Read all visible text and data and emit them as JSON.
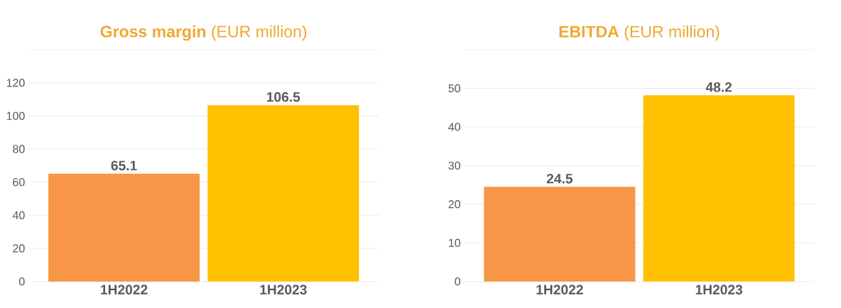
{
  "chart_data": [
    {
      "type": "bar",
      "title": "**Gross margin** (EUR million)",
      "categories": [
        "1H2022",
        "1H2023"
      ],
      "values": [
        65.1,
        106.5
      ],
      "colors": [
        "#f79646",
        "#ffc000"
      ],
      "ylim": [
        0,
        140
      ],
      "yticks": [
        0,
        20,
        40,
        60,
        80,
        100,
        120,
        {
          "value": 140,
          "label": null
        }
      ],
      "grid": "y",
      "data_labels": true
    },
    {
      "type": "bar",
      "title": "**EBITDA** (EUR million)",
      "categories": [
        "1H2022",
        "1H2023"
      ],
      "values": [
        24.5,
        48.2
      ],
      "colors": [
        "#f79646",
        "#ffc000"
      ],
      "ylim": [
        0,
        60
      ],
      "yticks": [
        0,
        10,
        20,
        30,
        40,
        50,
        {
          "value": 60,
          "label": null
        }
      ],
      "grid": "y",
      "data_labels": true
    }
  ]
}
